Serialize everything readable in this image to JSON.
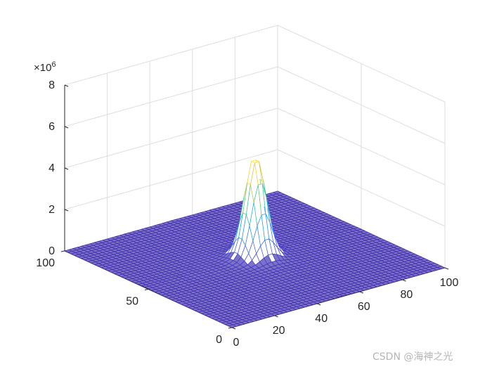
{
  "chart_data": {
    "type": "surface-mesh",
    "title": "",
    "xlabel": "",
    "ylabel": "",
    "zlabel": "",
    "x_range": [
      0,
      100
    ],
    "y_range": [
      0,
      100
    ],
    "zlim": [
      0,
      8
    ],
    "x_ticks": [
      "0",
      "20",
      "40",
      "60",
      "80",
      "100"
    ],
    "y_ticks": [
      "0",
      "50",
      "100"
    ],
    "z_ticks": [
      "0",
      "2",
      "4",
      "6",
      "8"
    ],
    "z_multiplier": {
      "base": "×10",
      "exponent": "6"
    },
    "peak": {
      "x": 51,
      "y": 51,
      "value": 4.7
    },
    "main_lobe_width": 4,
    "side_lobe_period": 8,
    "floor_level": 0.05,
    "grid_resolution": 51,
    "colormap": "parula",
    "grid": "on",
    "box": "open 3D axes"
  },
  "watermark": "CSDN @海神之光"
}
